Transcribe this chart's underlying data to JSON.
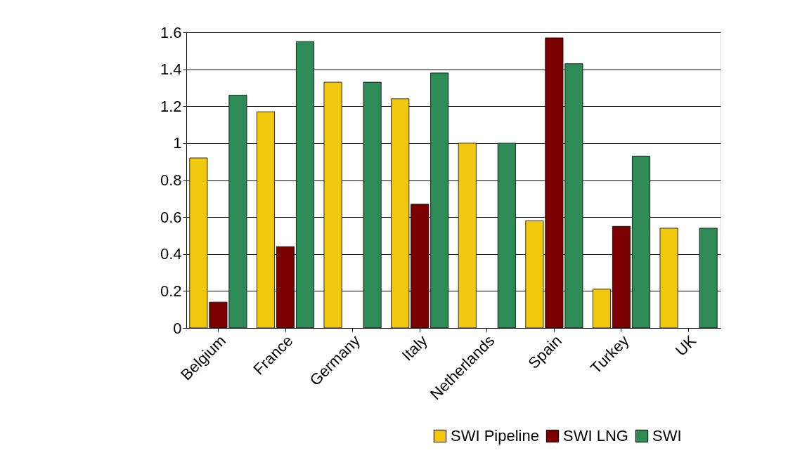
{
  "chart_data": {
    "type": "bar",
    "categories": [
      "Belgium",
      "France",
      "Germany",
      "Italy",
      "Netherlands",
      "Spain",
      "Turkey",
      "UK"
    ],
    "series": [
      {
        "name": "SWI Pipeline",
        "color": "#f2c80f",
        "values": [
          0.92,
          1.17,
          1.33,
          1.24,
          1.0,
          0.58,
          0.21,
          0.54
        ]
      },
      {
        "name": "SWI LNG",
        "color": "#7b0000",
        "values": [
          0.14,
          0.44,
          null,
          0.67,
          null,
          1.57,
          0.55,
          null
        ]
      },
      {
        "name": "SWI",
        "color": "#2e8b57",
        "values": [
          1.26,
          1.55,
          1.33,
          1.38,
          1.0,
          1.43,
          0.93,
          0.54
        ]
      }
    ],
    "ylim": [
      0,
      1.6
    ],
    "yticks": [
      0,
      0.2,
      0.4,
      0.6,
      0.8,
      1,
      1.2,
      1.4,
      1.6
    ],
    "grid": "y",
    "legend": "bottom right"
  }
}
